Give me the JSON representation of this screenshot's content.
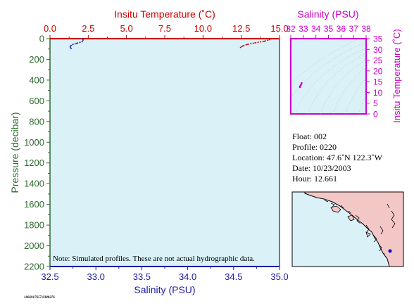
{
  "colors": {
    "plot_bg": "#d9f1f7",
    "temperature": "#cc0000",
    "salinity": "#1a1aa6",
    "pressure": "#2e6b2e",
    "ts_axes": "#cc00cc",
    "map_land": "#f4c7c7",
    "map_sea": "#d9f1f7"
  },
  "chart_data": [
    {
      "type": "line",
      "name": "profile",
      "temperature_axis": {
        "label": "Insitu Temperature (˚C)",
        "range": [
          0,
          15
        ],
        "ticks": [
          "0.0",
          "2.5",
          "5.0",
          "7.5",
          "10.0",
          "12.5",
          "15.0"
        ]
      },
      "salinity_axis": {
        "label": "Salinity (PSU)",
        "range": [
          32.5,
          35.0
        ],
        "ticks": [
          "32.5",
          "33.0",
          "33.5",
          "34.0",
          "34.5",
          "35.0"
        ]
      },
      "pressure_axis": {
        "label": "Pressure (decibar)",
        "range": [
          0,
          2200
        ],
        "inverted": true,
        "ticks": [
          "0",
          "200",
          "400",
          "600",
          "800",
          "1000",
          "1200",
          "1400",
          "1600",
          "1800",
          "2000",
          "2200"
        ]
      },
      "series": [
        {
          "id": "temperature",
          "x_axis": "temperature",
          "points": [
            [
              14.4,
              0
            ],
            [
              14.35,
              10
            ],
            [
              14.0,
              25
            ],
            [
              13.4,
              40
            ],
            [
              12.9,
              55
            ],
            [
              12.6,
              70
            ],
            [
              12.45,
              85
            ]
          ]
        },
        {
          "id": "salinity",
          "x_axis": "salinity",
          "points": [
            [
              32.86,
              0
            ],
            [
              32.86,
              15
            ],
            [
              32.85,
              30
            ],
            [
              32.79,
              45
            ],
            [
              32.75,
              55
            ],
            [
              32.73,
              65
            ],
            [
              32.72,
              80
            ],
            [
              32.73,
              95
            ]
          ]
        }
      ],
      "note": "Note: Simulated profiles.  These are not actual hydrographic data."
    },
    {
      "type": "scatter",
      "name": "ts_diagram",
      "salinity_axis": {
        "label": "Salinity (PSU)",
        "range": [
          32,
          38
        ],
        "ticks": [
          "32",
          "33",
          "34",
          "35",
          "36",
          "37",
          "38"
        ]
      },
      "temperature_axis": {
        "label": "Insitu Temperature (˚C)",
        "range": [
          0,
          35
        ],
        "ticks": [
          "0",
          "5",
          "10",
          "15",
          "20",
          "25",
          "30",
          "35"
        ]
      },
      "points": [
        [
          32.73,
          12.45
        ],
        [
          32.75,
          12.9
        ],
        [
          32.79,
          13.4
        ],
        [
          32.85,
          14.0
        ],
        [
          32.86,
          14.4
        ]
      ]
    }
  ],
  "info": {
    "float": "Float:  002",
    "profile": "Profile:  0220",
    "location": "Location:  47.6˚N  122.3˚W",
    "date": "Date:  10/23/2003",
    "hour": "Hour:  12.661"
  },
  "map": {
    "marker_lat": 47.6,
    "marker_lon": -122.3
  },
  "footer_id": "1066917657.0388276"
}
